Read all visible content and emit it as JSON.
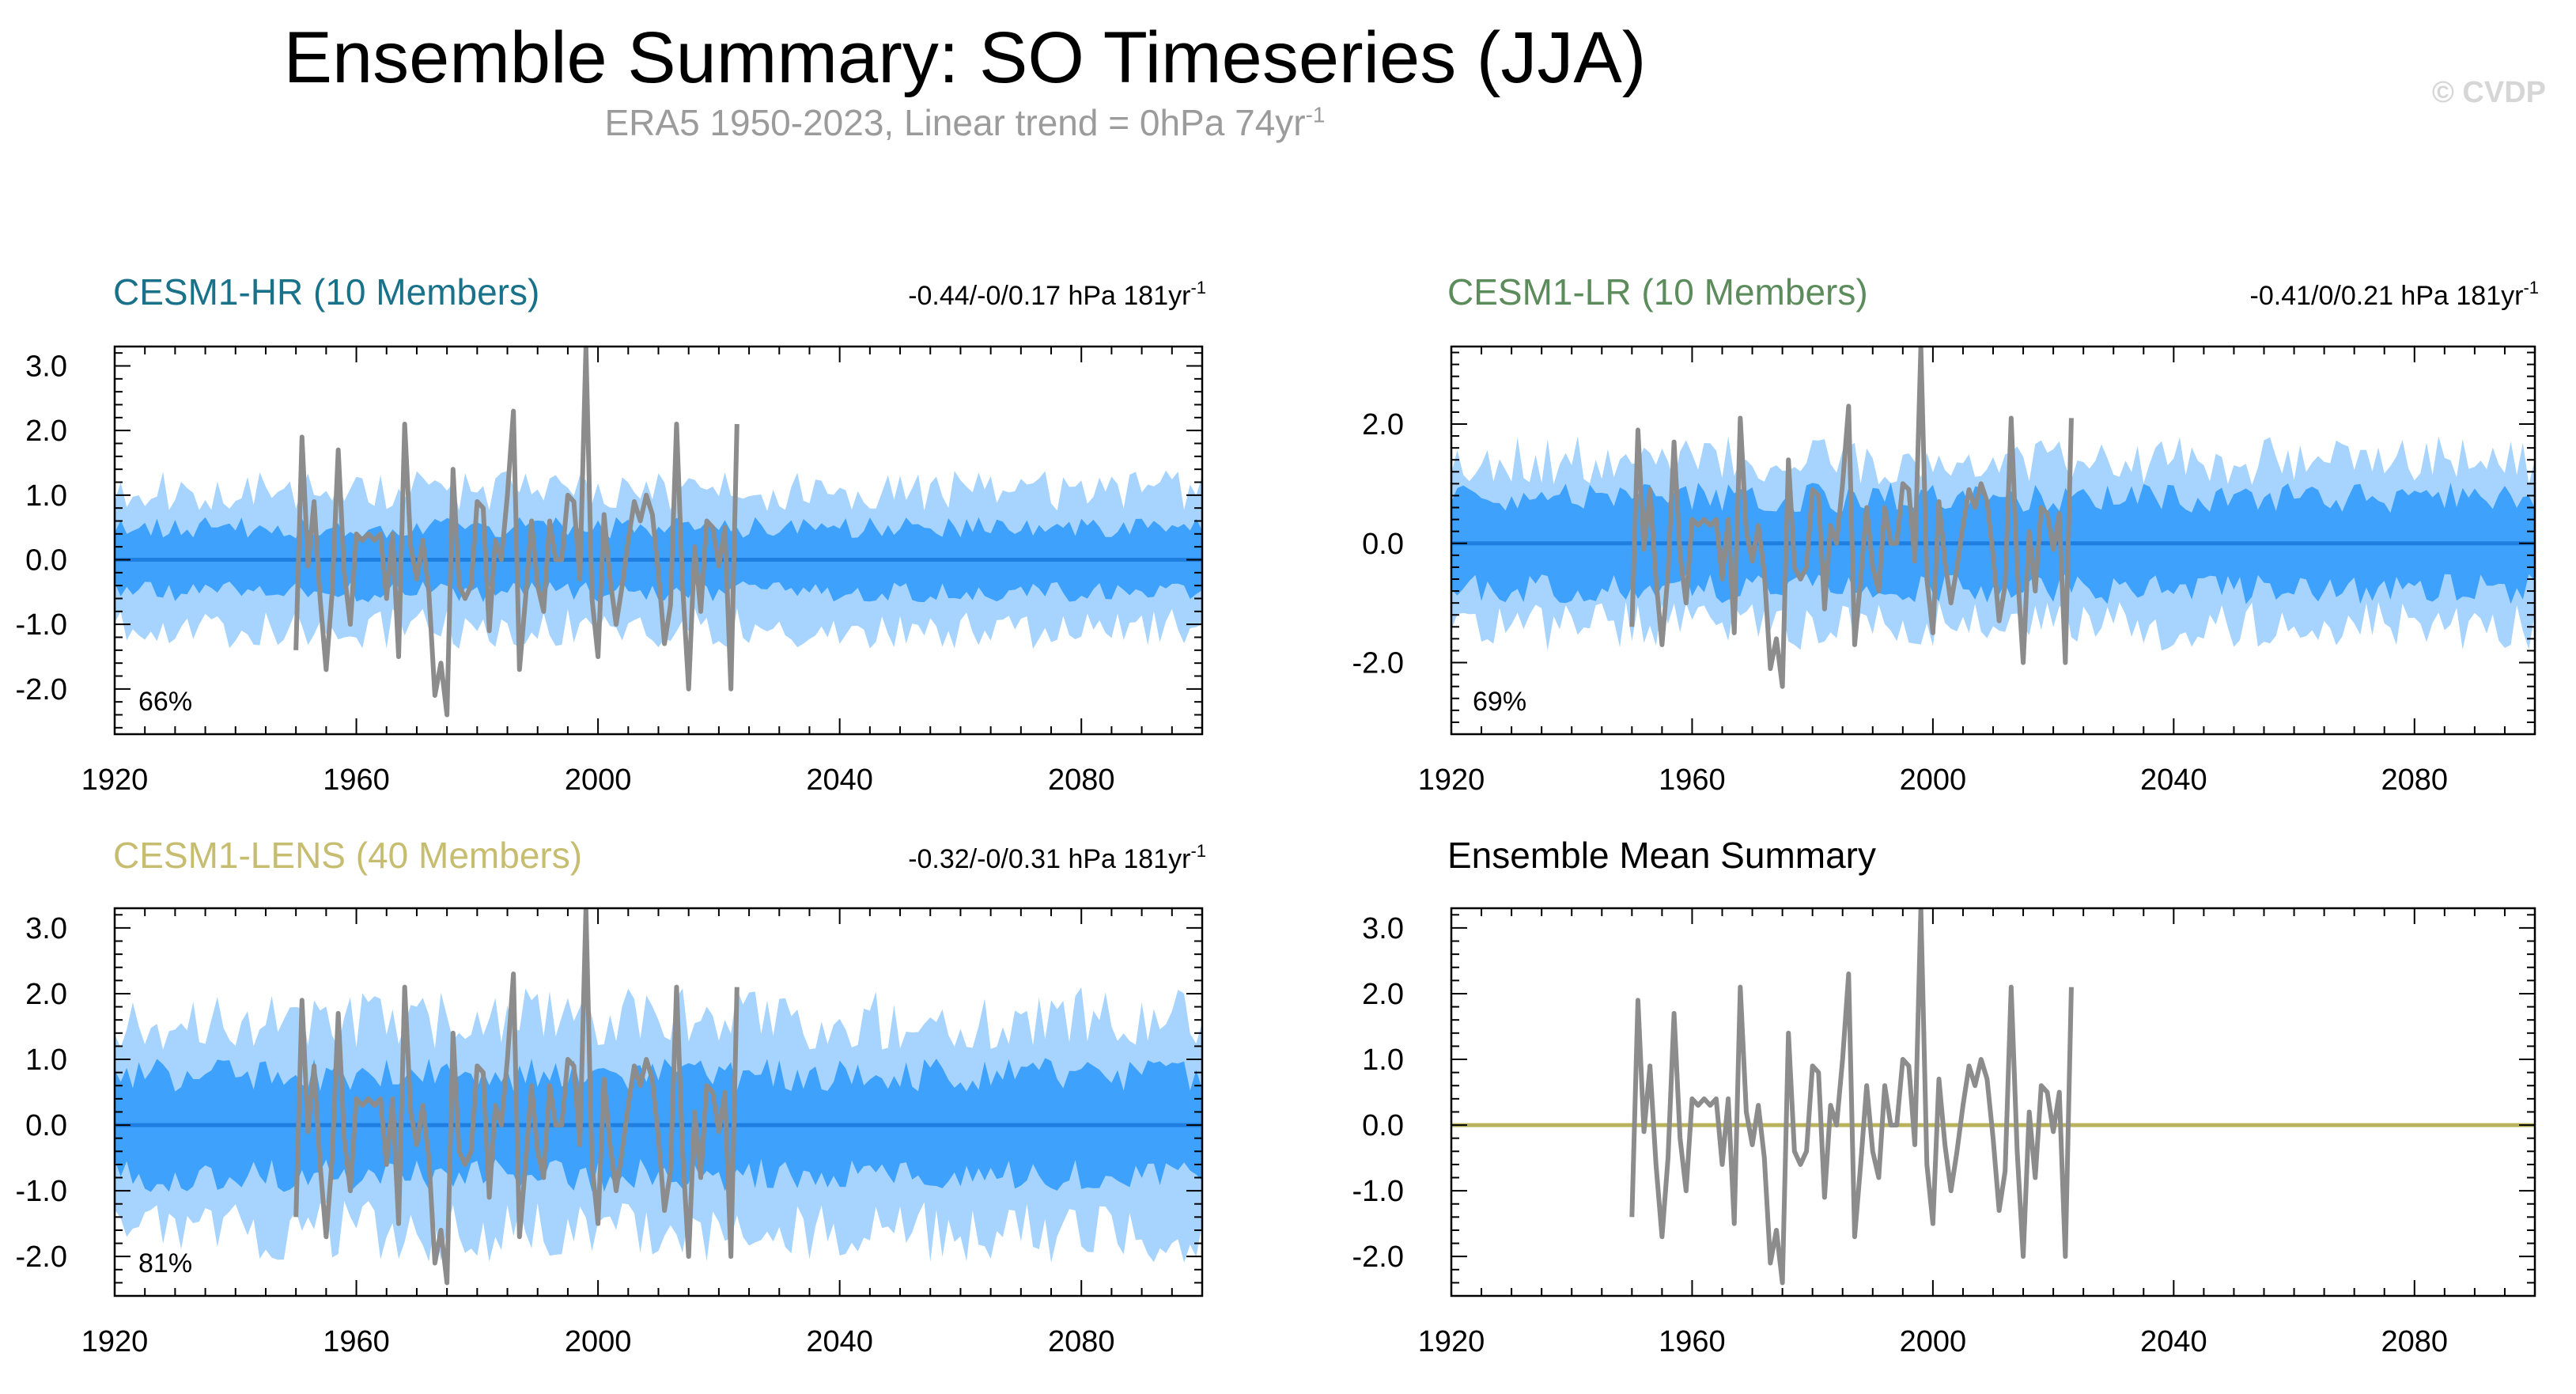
{
  "title": "Ensemble Summary: SO Timeseries (JJA)",
  "subtitle": {
    "text": "ERA5 1950-2023, Linear trend = 0hPa 74yr",
    "sup": "-1"
  },
  "watermark": "© CVDP",
  "colors": {
    "band_outer": "#a6d4ff",
    "band_inner": "#3ea1fb",
    "mean_line": "#1e7fe0",
    "obs_line": "#8c8c8c",
    "summary_zero": "#b9b25a"
  },
  "chart_data": [
    {
      "id": "hr",
      "type": "area",
      "title": "CESM1-HR (10 Members)",
      "title_color": "#19718a",
      "stat": "-0.44/-0/0.17 hPa 181yr",
      "stat_sup": "-1",
      "percent": "66%",
      "xlim": [
        1920,
        2100
      ],
      "ylim": [
        -2.7,
        3.3
      ],
      "xticks": [
        1920,
        1960,
        2000,
        2040,
        2080
      ],
      "yticks": [
        "3.0",
        "2.0",
        "1.0",
        "0.0",
        "-1.0",
        "-2.0"
      ],
      "spread": {
        "outer": 1.15,
        "inner": 0.55,
        "seed": 11
      },
      "series": [
        "ensemble-range",
        "ensemble-iqr",
        "ensemble-mean",
        "ERA5"
      ]
    },
    {
      "id": "lr",
      "type": "area",
      "title": "CESM1-LR (10 Members)",
      "title_color": "#5c8c5c",
      "stat": "-0.41/0/0.21 hPa 181yr",
      "stat_sup": "-1",
      "percent": "69%",
      "xlim": [
        1920,
        2100
      ],
      "ylim": [
        -3.2,
        3.3
      ],
      "xticks": [
        1920,
        1960,
        2000,
        2040,
        2080
      ],
      "yticks": [
        "2.0",
        "0.0",
        "-2.0"
      ],
      "spread": {
        "outer": 1.5,
        "inner": 0.85,
        "seed": 23
      },
      "series": [
        "ensemble-range",
        "ensemble-iqr",
        "ensemble-mean",
        "ERA5"
      ]
    },
    {
      "id": "lens",
      "type": "area",
      "title": "CESM1-LENS (40 Members)",
      "title_color": "#c7bd71",
      "stat": "-0.32/-0/0.31 hPa 181yr",
      "stat_sup": "-1",
      "percent": "81%",
      "xlim": [
        1920,
        2100
      ],
      "ylim": [
        -2.6,
        3.3
      ],
      "xticks": [
        1920,
        1960,
        2000,
        2040,
        2080
      ],
      "yticks": [
        "3.0",
        "2.0",
        "1.0",
        "0.0",
        "-1.0",
        "-2.0"
      ],
      "spread": {
        "outer": 1.75,
        "inner": 0.85,
        "seed": 37
      },
      "series": [
        "ensemble-range",
        "ensemble-iqr",
        "ensemble-mean",
        "ERA5"
      ]
    },
    {
      "id": "summary",
      "type": "line",
      "title": "Ensemble Mean Summary",
      "title_color": "#000000",
      "stat": "",
      "stat_sup": "",
      "percent": "",
      "xlim": [
        1920,
        2100
      ],
      "ylim": [
        -2.6,
        3.3
      ],
      "xticks": [
        1920,
        1960,
        2000,
        2040,
        2080
      ],
      "yticks": [
        "3.0",
        "2.0",
        "1.0",
        "0.0",
        "-1.0",
        "-2.0"
      ],
      "series": [
        "ensemble-mean-hr",
        "ensemble-mean-lr",
        "ensemble-mean-lens",
        "ERA5"
      ]
    }
  ],
  "obs": {
    "name": "ERA5",
    "x_start": 1950,
    "values": [
      -1.4,
      1.9,
      -0.1,
      0.9,
      -0.6,
      -1.7,
      -0.5,
      1.7,
      -0.2,
      -1.0,
      0.4,
      0.3,
      0.4,
      0.3,
      0.4,
      -0.6,
      0.4,
      -1.5,
      2.1,
      0.2,
      -0.3,
      0.3,
      -0.5,
      -2.1,
      -1.6,
      -2.4,
      1.4,
      -0.4,
      -0.6,
      -0.4,
      0.9,
      0.8,
      -1.1,
      0.3,
      0.0,
      1.0,
      2.3,
      -1.7,
      -0.6,
      0.6,
      -0.4,
      -0.8,
      0.6,
      0.0,
      0.0,
      1.0,
      0.9,
      -0.3,
      3.3,
      -0.6,
      -1.5,
      0.7,
      -0.3,
      -1.0,
      -0.4,
      0.3,
      0.9,
      0.6,
      1.0,
      0.7,
      -0.2,
      -1.3,
      -0.7,
      2.1,
      -0.4,
      -2.0,
      0.2,
      -0.8,
      0.6,
      0.5,
      -0.1,
      0.5,
      -2.0,
      2.1
    ]
  }
}
